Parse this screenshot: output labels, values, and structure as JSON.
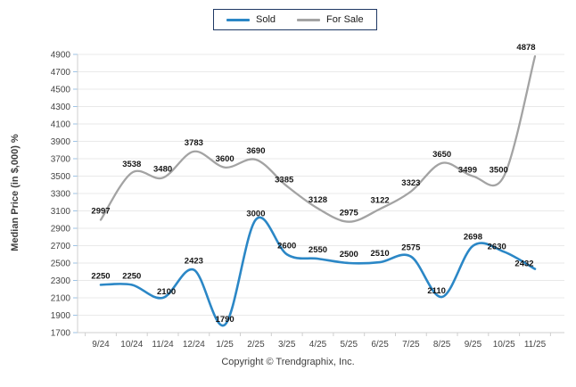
{
  "chart_data": {
    "type": "line",
    "title": "",
    "ylabel": "Median Price (in $,000) %",
    "xlabel": "",
    "categories": [
      "9/24",
      "10/24",
      "11/24",
      "12/24",
      "1/25",
      "2/25",
      "3/25",
      "4/25",
      "5/25",
      "6/25",
      "7/25",
      "8/25",
      "9/25",
      "10/25",
      "11/25"
    ],
    "series": [
      {
        "name": "Sold",
        "color": "#2b87c6",
        "values": [
          2250,
          2250,
          2100,
          2423,
          1790,
          3000,
          2600,
          2550,
          2500,
          2510,
          2575,
          2110,
          2698,
          2630,
          2432
        ]
      },
      {
        "name": "For Sale",
        "color": "#a3a3a3",
        "values": [
          2997,
          3538,
          3480,
          3783,
          3600,
          3690,
          3385,
          3128,
          2975,
          3122,
          3323,
          3650,
          3499,
          3500,
          4878
        ]
      }
    ],
    "ylim": [
      1700,
      4900
    ],
    "ytick_step": 200,
    "grid": true,
    "smooth": true,
    "legend_position": "top-center",
    "point_labels": true,
    "label_offsets": {
      "Sold": {
        "2": [
          4,
          3
        ],
        "4": [
          0,
          4
        ],
        "5": [
          0,
          3
        ],
        "11": [
          -6,
          3
        ],
        "13": [
          -8,
          4
        ],
        "14": [
          -12,
          4
        ]
      },
      "For Sale": {
        "6": [
          -3,
          3
        ],
        "12": [
          -6,
          3
        ],
        "13": [
          -6,
          3
        ],
        "14": [
          -10,
          0
        ]
      }
    }
  },
  "legend": {
    "items": [
      {
        "label": "Sold",
        "color": "#2b87c6"
      },
      {
        "label": "For Sale",
        "color": "#a3a3a3"
      }
    ]
  },
  "footer": {
    "copyright": "Copyright © Trendgraphix, Inc."
  },
  "colors": {
    "grid": "#e9e9e9",
    "axis": "#cfcfcf",
    "y_tick": "#9dc3e6",
    "tick_label": "#454545",
    "data_label": "#141414",
    "legend_border": "#1f3864"
  }
}
